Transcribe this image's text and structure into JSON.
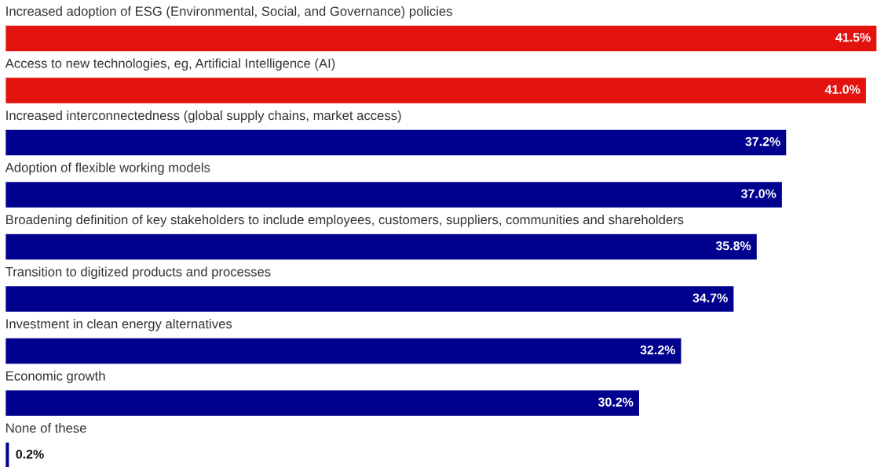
{
  "chart_data": {
    "type": "bar",
    "orientation": "horizontal",
    "categories": [
      "Increased adoption of ESG (Environmental, Social, and Governance) policies",
      "Access to new technologies, eg, Artificial Intelligence (AI)",
      "Increased interconnectedness (global supply chains, market access)",
      "Adoption of flexible working models",
      "Broadening definition of key stakeholders to include employees, customers, suppliers, communities and shareholders",
      "Transition to digitized products and processes",
      "Investment in clean energy alternatives",
      "Economic growth",
      "None of these"
    ],
    "values": [
      41.5,
      41.0,
      37.2,
      37.0,
      35.8,
      34.7,
      32.2,
      30.2,
      0.2
    ],
    "colors": [
      "#e2130f",
      "#e2130f",
      "#00008f",
      "#00008f",
      "#00008f",
      "#00008f",
      "#00008f",
      "#00008f",
      "#00008f"
    ],
    "value_labels": [
      "41.5%",
      "41.0%",
      "37.2%",
      "37.0%",
      "35.8%",
      "34.7%",
      "32.2%",
      "30.2%",
      "0.2%"
    ]
  }
}
